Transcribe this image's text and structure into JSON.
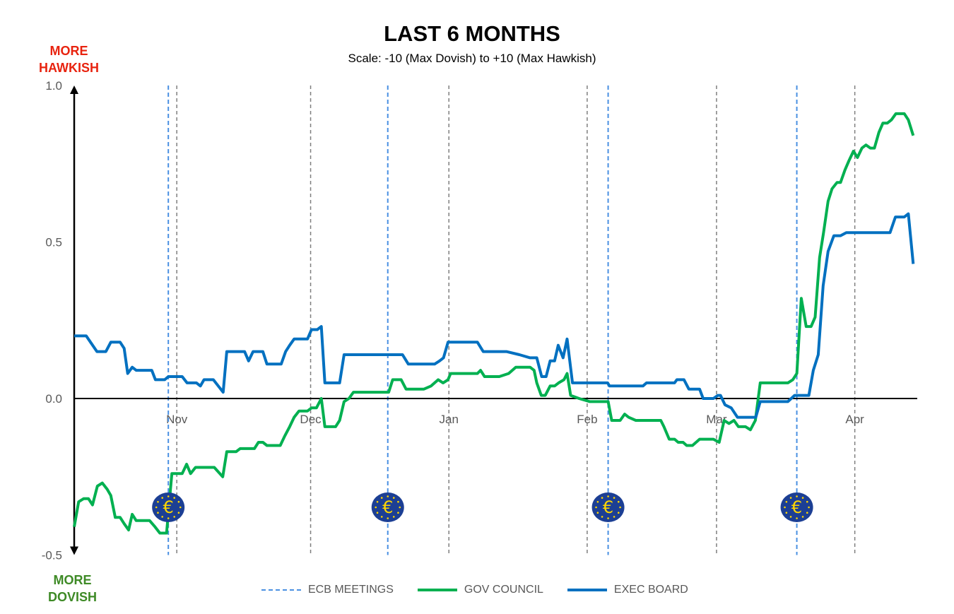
{
  "chart_data": {
    "type": "line",
    "title": "LAST 6 MONTHS",
    "subtitle": "Scale: -10 (Max Dovish)  to +10 (Max Hawkish)",
    "top_label": "MORE HAWKISH",
    "bottom_label": "MORE DOVISH",
    "xlabel": "",
    "ylabel": "",
    "x_unit": "days from chart start",
    "xlim": [
      0,
      189
    ],
    "ylim": [
      -0.5,
      1.0
    ],
    "yticks": [
      {
        "value": 1.0,
        "label": "1.0"
      },
      {
        "value": 0.5,
        "label": "0.5"
      },
      {
        "value": 0.0,
        "label": "0.0"
      },
      {
        "value": -0.5,
        "label": "-0.5"
      }
    ],
    "month_ticks": [
      {
        "label": "Nov",
        "x": 23
      },
      {
        "label": "Dec",
        "x": 53
      },
      {
        "label": "Jan",
        "x": 84
      },
      {
        "label": "Feb",
        "x": 115
      },
      {
        "label": "Mar",
        "x": 144
      },
      {
        "label": "Apr",
        "x": 175
      }
    ],
    "ecb_meetings": [
      21.1,
      70.3,
      119.7,
      162.0
    ],
    "legend_position": "bottom",
    "colors": {
      "ecb": "#4a90e2",
      "gov": "#00b050",
      "exec": "#0070c0",
      "euro_bg": "#1c3f94",
      "euro_fg": "#ffd700"
    },
    "series": [
      {
        "name": "ECB MEETINGS",
        "style": "dashed"
      },
      {
        "name": "GOV COUNCIL",
        "x": [
          0,
          1.0,
          2.1,
          3.2,
          4.1,
          5.2,
          6.3,
          7.4,
          8.2,
          9.2,
          10.3,
          11.2,
          12.2,
          13.0,
          13.9,
          16.9,
          18.1,
          19.2,
          20.7,
          21.9,
          24.2,
          25.2,
          26.1,
          27.2,
          28.3,
          31.4,
          33.3,
          34.2,
          35.3,
          36.3,
          37.2,
          38.3,
          39.3,
          40.4,
          41.3,
          42.3,
          43.2,
          46.2,
          47.2,
          48.3,
          49.3,
          50.4,
          51.3,
          52.3,
          53.2,
          54.3,
          55.4,
          56.2,
          58.6,
          59.5,
          60.5,
          61.6,
          62.6,
          70.5,
          71.4,
          73.3,
          74.4,
          78.4,
          80.0,
          81.6,
          82.7,
          83.8,
          84.4,
          90.4,
          91.1,
          92.0,
          94.2,
          95.3,
          97.4,
          99.0,
          102.2,
          103.1,
          103.7,
          104.7,
          105.6,
          106.7,
          107.7,
          108.6,
          109.8,
          110.5,
          111.3,
          113.2,
          115.6,
          119.7,
          120.5,
          122.4,
          123.4,
          124.3,
          125.9,
          131.5,
          132.2,
          133.4,
          134.6,
          135.4,
          136.5,
          137.3,
          138.6,
          140.2,
          143.3,
          144.6,
          145.7,
          146.8,
          147.9,
          148.9,
          150.5,
          151.6,
          152.7,
          153.8,
          160.0,
          161.1,
          162.0,
          163.0,
          164.1,
          165.2,
          166.1,
          167.1,
          168.0,
          169.0,
          169.9,
          171.0,
          171.8,
          172.8,
          173.7,
          174.7,
          175.6,
          176.6,
          177.5,
          178.5,
          179.4,
          180.4,
          181.3,
          182.3,
          183.2,
          184.2,
          186.1,
          187.0,
          188.1
        ],
        "y": [
          -0.41,
          -0.33,
          -0.32,
          -0.32,
          -0.34,
          -0.28,
          -0.27,
          -0.29,
          -0.31,
          -0.38,
          -0.38,
          -0.4,
          -0.42,
          -0.37,
          -0.39,
          -0.39,
          -0.41,
          -0.43,
          -0.43,
          -0.24,
          -0.24,
          -0.21,
          -0.24,
          -0.22,
          -0.22,
          -0.22,
          -0.25,
          -0.17,
          -0.17,
          -0.17,
          -0.16,
          -0.16,
          -0.16,
          -0.16,
          -0.14,
          -0.14,
          -0.15,
          -0.15,
          -0.12,
          -0.09,
          -0.06,
          -0.04,
          -0.04,
          -0.04,
          -0.03,
          -0.03,
          0.0,
          -0.09,
          -0.09,
          -0.07,
          -0.01,
          0.0,
          0.02,
          0.02,
          0.06,
          0.06,
          0.03,
          0.03,
          0.04,
          0.06,
          0.05,
          0.06,
          0.08,
          0.08,
          0.09,
          0.07,
          0.07,
          0.07,
          0.08,
          0.1,
          0.1,
          0.09,
          0.05,
          0.01,
          0.01,
          0.04,
          0.04,
          0.05,
          0.06,
          0.08,
          0.01,
          0.0,
          -0.01,
          -0.01,
          -0.07,
          -0.07,
          -0.05,
          -0.06,
          -0.07,
          -0.07,
          -0.09,
          -0.13,
          -0.13,
          -0.14,
          -0.14,
          -0.15,
          -0.15,
          -0.13,
          -0.13,
          -0.14,
          -0.07,
          -0.08,
          -0.07,
          -0.09,
          -0.09,
          -0.1,
          -0.07,
          0.05,
          0.05,
          0.06,
          0.08,
          0.32,
          0.23,
          0.23,
          0.26,
          0.45,
          0.53,
          0.63,
          0.67,
          0.69,
          0.69,
          0.73,
          0.76,
          0.79,
          0.77,
          0.8,
          0.81,
          0.8,
          0.8,
          0.85,
          0.88,
          0.88,
          0.89,
          0.91,
          0.91,
          0.89,
          0.84
        ]
      },
      {
        "name": "EXEC BOARD",
        "x": [
          0,
          2.7,
          5.1,
          7.1,
          8.2,
          10.3,
          11.2,
          12.0,
          13.0,
          13.9,
          17.4,
          18.2,
          20.3,
          21.1,
          24.2,
          25.3,
          27.4,
          28.3,
          29.1,
          31.2,
          32.3,
          33.4,
          34.2,
          35.3,
          38.2,
          39.1,
          40.1,
          42.3,
          43.2,
          46.4,
          47.4,
          48.3,
          49.3,
          52.3,
          53.2,
          54.5,
          55.4,
          56.2,
          59.5,
          60.5,
          73.6,
          74.9,
          80.8,
          81.9,
          82.8,
          83.8,
          90.4,
          91.7,
          96.9,
          99.8,
          102.2,
          103.7,
          104.8,
          105.8,
          106.7,
          107.7,
          108.5,
          109.6,
          110.5,
          111.7,
          119.6,
          120.0,
          124.3,
          125.1,
          127.5,
          128.3,
          134.6,
          135.1,
          136.7,
          137.8,
          140.2,
          141.0,
          143.3,
          144.3,
          144.9,
          145.9,
          147.3,
          148.7,
          152.8,
          153.8,
          160.0,
          161.5,
          164.7,
          165.7,
          166.8,
          167.9,
          169.0,
          170.3,
          171.8,
          173.1,
          182.9,
          184.1,
          186.1,
          187.0,
          188.1
        ],
        "y": [
          0.2,
          0.2,
          0.15,
          0.15,
          0.18,
          0.18,
          0.16,
          0.08,
          0.1,
          0.09,
          0.09,
          0.06,
          0.06,
          0.07,
          0.07,
          0.05,
          0.05,
          0.04,
          0.06,
          0.06,
          0.04,
          0.02,
          0.15,
          0.15,
          0.15,
          0.12,
          0.15,
          0.15,
          0.11,
          0.11,
          0.15,
          0.17,
          0.19,
          0.19,
          0.22,
          0.22,
          0.23,
          0.05,
          0.05,
          0.14,
          0.14,
          0.11,
          0.11,
          0.12,
          0.13,
          0.18,
          0.18,
          0.15,
          0.15,
          0.14,
          0.13,
          0.13,
          0.07,
          0.07,
          0.12,
          0.12,
          0.17,
          0.13,
          0.19,
          0.05,
          0.05,
          0.04,
          0.04,
          0.04,
          0.04,
          0.05,
          0.05,
          0.06,
          0.06,
          0.03,
          0.03,
          0.0,
          0.0,
          0.01,
          0.01,
          -0.02,
          -0.03,
          -0.06,
          -0.06,
          -0.01,
          -0.01,
          0.01,
          0.01,
          0.09,
          0.14,
          0.36,
          0.47,
          0.52,
          0.52,
          0.53,
          0.53,
          0.58,
          0.58,
          0.59,
          0.43
        ]
      }
    ]
  }
}
